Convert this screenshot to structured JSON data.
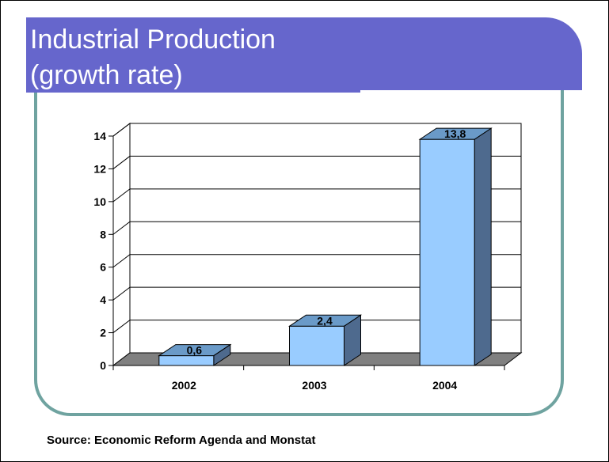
{
  "slide": {
    "title_line_1": "Industrial Production",
    "title_line_2": "(growth rate)",
    "source": "Source: Economic Reform Agenda and Monstat"
  },
  "colors": {
    "title_bar": "#6666cc",
    "frame_accent": "#6fa3a0",
    "bar_front": "#99ccff",
    "bar_top": "#6a9ac8",
    "bar_side": "#4e6a8e",
    "floor": "#808080"
  },
  "chart_data": {
    "type": "bar",
    "categories": [
      "2002",
      "2003",
      "2004"
    ],
    "values": [
      0.6,
      2.4,
      13.8
    ],
    "value_labels": [
      "0,6",
      "2,4",
      "13,8"
    ],
    "y_ticks": [
      "0",
      "2",
      "4",
      "6",
      "8",
      "10",
      "12",
      "14"
    ],
    "ylim": [
      0,
      14
    ],
    "title": "",
    "xlabel": "",
    "ylabel": "",
    "grid": true,
    "style": "3d-column",
    "legend": "none"
  }
}
